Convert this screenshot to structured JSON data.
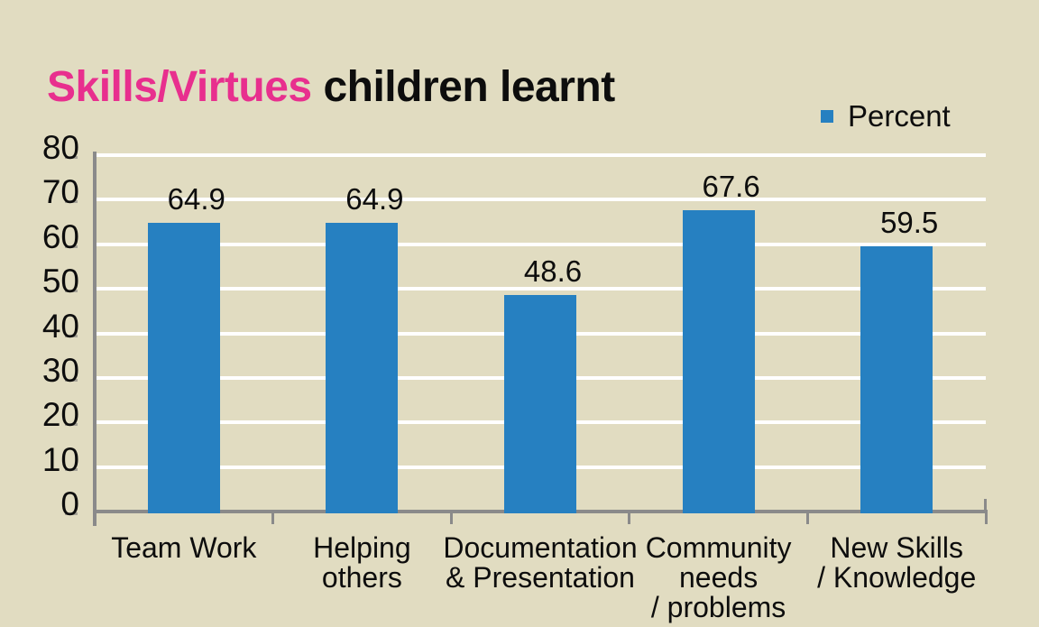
{
  "title": {
    "highlight": "Skills/Virtues",
    "rest": " children learnt"
  },
  "legend": {
    "label": "Percent"
  },
  "chart_data": {
    "type": "bar",
    "title": "Skills/Virtues children learnt",
    "categories": [
      "Team Work",
      "Helping others",
      "Documentation & Presentation",
      "Community needs / problems",
      "New Skills / Knowledge"
    ],
    "category_label_lines": [
      [
        "Team Work"
      ],
      [
        "Helping",
        "others"
      ],
      [
        "Documentation",
        "& Presentation"
      ],
      [
        "Community",
        "needs",
        "/ problems"
      ],
      [
        "New Skills",
        "/ Knowledge"
      ]
    ],
    "series": [
      {
        "name": "Percent",
        "values": [
          64.9,
          64.9,
          48.6,
          67.6,
          59.5
        ]
      }
    ],
    "value_labels": [
      "64.9",
      "64.9",
      "48.6",
      "67.6",
      "59.5"
    ],
    "xlabel": "",
    "ylabel": "",
    "ylim": [
      0,
      80
    ],
    "yticks": [
      0,
      10,
      20,
      30,
      40,
      50,
      60,
      70,
      80
    ],
    "grid": "horizontal",
    "legend_position": "top-right"
  },
  "colors": {
    "background": "#e1dcc1",
    "bar_blue": "#2680c1",
    "title_pink": "#e82f8e",
    "text_black": "#0d0d0d",
    "axis_gray": "#8a8a8a",
    "gridline_white": "#ffffff"
  }
}
